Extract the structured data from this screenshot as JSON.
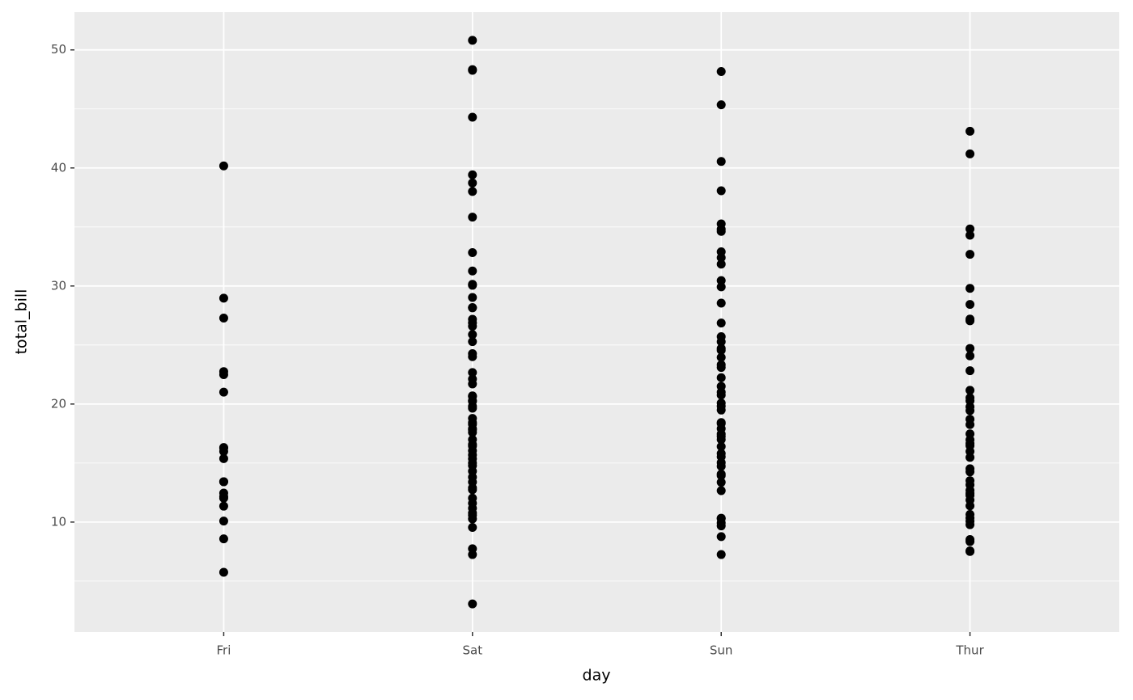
{
  "chart_data": {
    "type": "strip",
    "x_label": "day",
    "y_label": "total_bill",
    "categories": [
      "Fri",
      "Sat",
      "Sun",
      "Thur"
    ],
    "values": [
      [
        28.97,
        22.49,
        5.75,
        16.32,
        22.75,
        40.17,
        27.28,
        12.03,
        21.01,
        12.46,
        11.35,
        15.38,
        12.16,
        13.42,
        8.58,
        15.98,
        13.42,
        16.27,
        10.09
      ],
      [
        50.81,
        48.33,
        48.27,
        44.3,
        39.42,
        38.73,
        38.01,
        35.83,
        32.83,
        31.27,
        30.14,
        30.06,
        29.03,
        28.17,
        28.15,
        27.18,
        26.88,
        26.59,
        25.89,
        25.29,
        24.27,
        24.01,
        22.67,
        22.12,
        21.7,
        20.69,
        20.65,
        20.29,
        20.23,
        19.81,
        19.65,
        18.78,
        18.43,
        18.29,
        17.92,
        17.82,
        17.59,
        16.99,
        16.58,
        16.45,
        16.04,
        15.69,
        15.36,
        15.01,
        14.78,
        14.31,
        13.81,
        13.39,
        12.9,
        12.74,
        12.03,
        11.59,
        11.17,
        10.77,
        10.59,
        10.27,
        9.55,
        7.74,
        7.25,
        3.07
      ],
      [
        48.17,
        45.35,
        40.55,
        38.07,
        35.26,
        34.81,
        34.63,
        32.9,
        32.4,
        31.85,
        30.46,
        29.93,
        28.55,
        26.86,
        25.71,
        25.28,
        24.71,
        24.55,
        23.95,
        23.33,
        23.1,
        22.23,
        21.5,
        21.01,
        20.76,
        20.08,
        19.82,
        19.49,
        18.43,
        18.35,
        17.92,
        17.46,
        17.26,
        16.99,
        16.4,
        15.81,
        15.53,
        15.04,
        14.73,
        14.07,
        13.94,
        13.37,
        12.66,
        10.33,
        10.29,
        9.94,
        9.68,
        8.77,
        7.25
      ],
      [
        43.11,
        41.19,
        34.83,
        34.3,
        32.68,
        29.8,
        28.44,
        27.2,
        27.05,
        24.71,
        24.08,
        22.82,
        21.16,
        20.53,
        20.27,
        19.77,
        19.44,
        18.71,
        18.26,
        17.47,
        16.97,
        16.66,
        16.47,
        15.98,
        15.48,
        14.52,
        14.26,
        13.51,
        13.16,
        12.69,
        12.43,
        12.26,
        11.87,
        11.38,
        10.65,
        10.34,
        10.07,
        9.78,
        8.52,
        8.35,
        7.56,
        7.51
      ]
    ],
    "color": "#000000",
    "ylim": [
      0.68,
      53.2
    ],
    "yticks": [
      10,
      20,
      30,
      40,
      50
    ],
    "y_minor_ticks": [
      5,
      15,
      25,
      35,
      45
    ],
    "grid": true
  }
}
